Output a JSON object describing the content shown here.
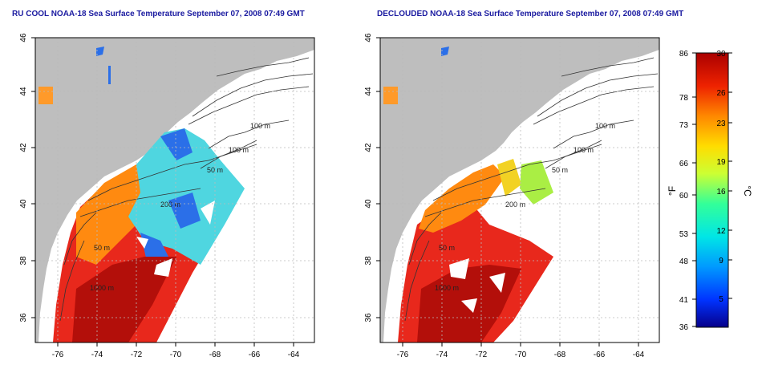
{
  "left_map": {
    "title": "RU COOL NOAA-18 Sea Surface Temperature September 07, 2008 07:49 GMT"
  },
  "right_map": {
    "title": "DECLOUDED NOAA-18 Sea Surface Temperature September 07, 2008 07:49 GMT"
  },
  "axes": {
    "lon_ticks": [
      "-76",
      "-74",
      "-72",
      "-70",
      "-68",
      "-66",
      "-64"
    ],
    "lat_ticks": [
      "36",
      "38",
      "40",
      "42",
      "44",
      "46"
    ]
  },
  "contour_labels": {
    "left": [
      "100 m",
      "100 m",
      "50 m",
      "200 m",
      "50 m",
      "1000 m"
    ],
    "right": [
      "100 m",
      "100 m",
      "50 m",
      "200 m",
      "50 m",
      "1000 m"
    ]
  },
  "colorbar": {
    "unit_f": "°F",
    "unit_c": "°C",
    "f_ticks": [
      "86",
      "78",
      "73",
      "66",
      "60",
      "53",
      "48",
      "41",
      "36"
    ],
    "c_ticks": [
      "30",
      "26",
      "23",
      "19",
      "16",
      "12",
      "9",
      "5"
    ],
    "colors": [
      "#07008a",
      "#0033ff",
      "#0099ff",
      "#00e6e6",
      "#33ff99",
      "#ccff33",
      "#ffdd00",
      "#ff8800",
      "#ee2200",
      "#aa0000"
    ]
  }
}
